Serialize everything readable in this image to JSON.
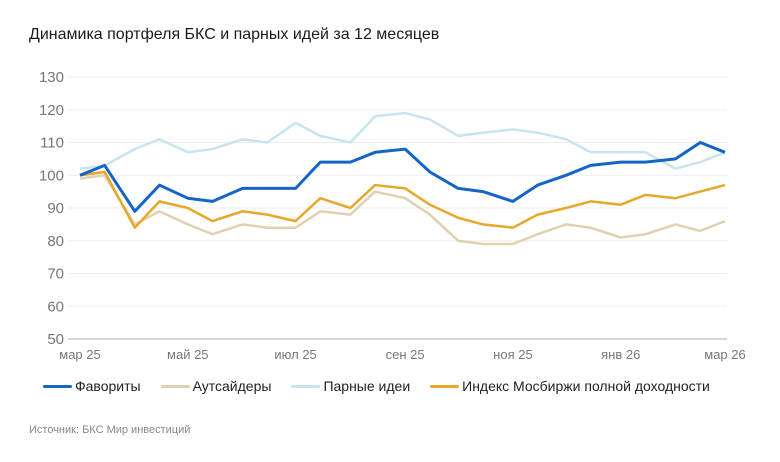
{
  "chart_data": {
    "type": "line",
    "title": "Динамика портфеля БКС и парных идей за 12 месяцев",
    "xlabel": "",
    "ylabel": "",
    "ylim": [
      50,
      130
    ],
    "yticks": [
      "50",
      "60",
      "70",
      "80",
      "90",
      "100",
      "110",
      "120",
      "130"
    ],
    "xticks": [
      {
        "date": "2025-03-01",
        "label": "мар 25"
      },
      {
        "date": "2025-05-01",
        "label": "май 25"
      },
      {
        "date": "2025-07-01",
        "label": "июл 25"
      },
      {
        "date": "2025-09-01",
        "label": "сен 25"
      },
      {
        "date": "2025-11-01",
        "label": "ноя 25"
      },
      {
        "date": "2026-01-01",
        "label": "янв 26"
      },
      {
        "date": "2026-03-01",
        "label": "мар 26"
      }
    ],
    "grid": true,
    "legend_position": "bottom",
    "x": [
      "2025-03-01",
      "2025-03-15",
      "2025-04-01",
      "2025-04-15",
      "2025-05-01",
      "2025-05-15",
      "2025-06-01",
      "2025-06-15",
      "2025-07-01",
      "2025-07-15",
      "2025-08-01",
      "2025-08-15",
      "2025-09-01",
      "2025-09-15",
      "2025-10-01",
      "2025-10-15",
      "2025-11-01",
      "2025-11-15",
      "2025-12-01",
      "2025-12-15",
      "2026-01-01",
      "2026-01-15",
      "2026-02-01",
      "2026-02-15",
      "2026-03-01"
    ],
    "series": [
      {
        "name": "Фавориты",
        "color": "#1565c8",
        "values": [
          100,
          103,
          89,
          97,
          93,
          92,
          96,
          96,
          96,
          104,
          104,
          107,
          108,
          101,
          96,
          95,
          92,
          97,
          100,
          103,
          104,
          104,
          105,
          110,
          107
        ]
      },
      {
        "name": "Аутсайдеры",
        "color": "#e2d1b0",
        "values": [
          99,
          100,
          85,
          89,
          85,
          82,
          85,
          84,
          84,
          89,
          88,
          95,
          93,
          88,
          80,
          79,
          79,
          82,
          85,
          84,
          81,
          82,
          85,
          83,
          86
        ]
      },
      {
        "name": "Парные идеи",
        "color": "#c8e4ee",
        "values": [
          102,
          103,
          108,
          111,
          107,
          108,
          111,
          110,
          116,
          112,
          110,
          118,
          119,
          117,
          112,
          113,
          114,
          113,
          111,
          107,
          107,
          107,
          102,
          104,
          107
        ]
      },
      {
        "name": "Индекс Мосбиржи полной доходности",
        "color": "#e5a82a",
        "values": [
          100,
          101,
          84,
          92,
          90,
          86,
          89,
          88,
          86,
          93,
          90,
          97,
          96,
          91,
          87,
          85,
          84,
          88,
          90,
          92,
          91,
          94,
          93,
          95,
          97
        ]
      }
    ]
  },
  "source": "Источник: БКС Мир инвестиций"
}
